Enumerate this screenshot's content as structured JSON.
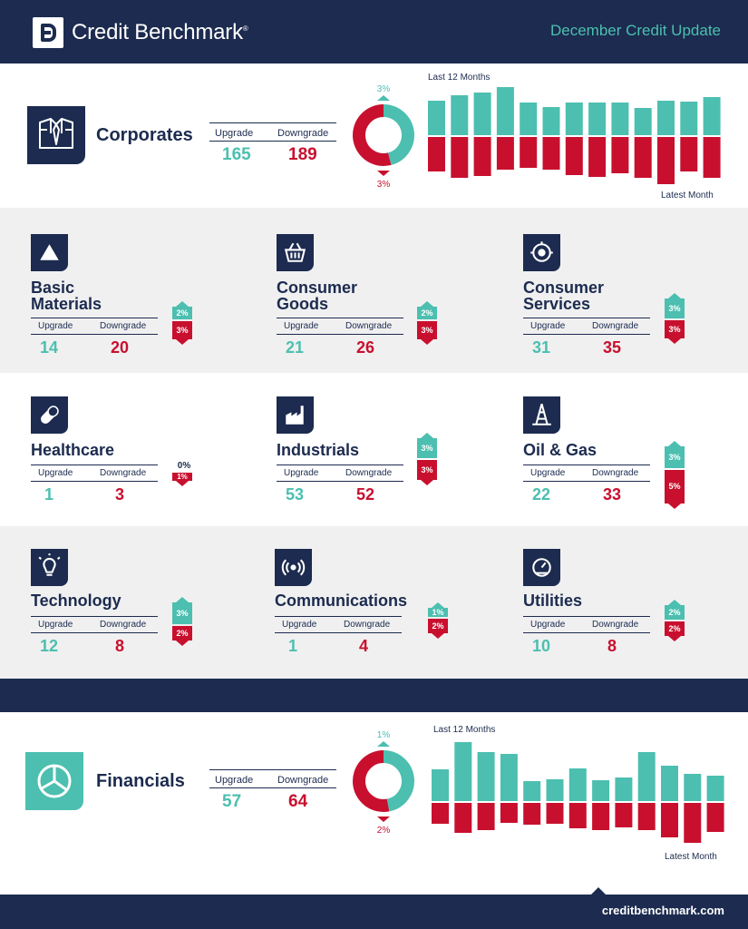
{
  "header": {
    "brand": "Credit Benchmark",
    "brand_mark": "®",
    "subtitle": "December Credit Update"
  },
  "colors": {
    "navy": "#1c2b4f",
    "teal": "#4cbfb0",
    "red": "#c8102e",
    "band": "#f0f0f0"
  },
  "labels": {
    "upgrade": "Upgrade",
    "downgrade": "Downgrade",
    "last12": "Last 12 Months",
    "latest": "Latest Month"
  },
  "corporates": {
    "title": "Corporates",
    "icon": "shirt-tie-icon",
    "upgrade": "165",
    "downgrade": "189",
    "pct_up": "3%",
    "pct_down": "3%"
  },
  "sectors": [
    {
      "title_line1": "Basic",
      "title_line2": "Materials",
      "icon": "triangle-icon",
      "upgrade": "14",
      "downgrade": "20",
      "pct_up": "2%",
      "pct_down": "3%"
    },
    {
      "title_line1": "Consumer",
      "title_line2": "Goods",
      "icon": "basket-icon",
      "upgrade": "21",
      "downgrade": "26",
      "pct_up": "2%",
      "pct_down": "3%"
    },
    {
      "title_line1": "Consumer",
      "title_line2": "Services",
      "icon": "service-icon",
      "upgrade": "31",
      "downgrade": "35",
      "pct_up": "3%",
      "pct_down": "3%"
    },
    {
      "title_line1": "Healthcare",
      "title_line2": "",
      "icon": "pill-icon",
      "upgrade": "1",
      "downgrade": "3",
      "pct_up": "0%",
      "pct_down": "1%"
    },
    {
      "title_line1": "Industrials",
      "title_line2": "",
      "icon": "factory-icon",
      "upgrade": "53",
      "downgrade": "52",
      "pct_up": "3%",
      "pct_down": "3%"
    },
    {
      "title_line1": "Oil & Gas",
      "title_line2": "",
      "icon": "oil-rig-icon",
      "upgrade": "22",
      "downgrade": "33",
      "pct_up": "3%",
      "pct_down": "5%"
    },
    {
      "title_line1": "Technology",
      "title_line2": "",
      "icon": "lightbulb-icon",
      "upgrade": "12",
      "downgrade": "8",
      "pct_up": "3%",
      "pct_down": "2%"
    },
    {
      "title_line1": "Communications",
      "title_line2": "",
      "icon": "signal-icon",
      "upgrade": "1",
      "downgrade": "4",
      "pct_up": "1%",
      "pct_down": "2%"
    },
    {
      "title_line1": "Utilities",
      "title_line2": "",
      "icon": "gauge-icon",
      "upgrade": "10",
      "downgrade": "8",
      "pct_up": "2%",
      "pct_down": "2%"
    }
  ],
  "financials": {
    "title": "Financials",
    "icon": "pie-icon",
    "upgrade": "57",
    "downgrade": "64",
    "pct_up": "1%",
    "pct_down": "2%"
  },
  "footer": {
    "url": "creditbenchmark.com"
  },
  "chart_data": [
    {
      "type": "donut",
      "name": "Corporates",
      "values": [
        {
          "label": "3%",
          "value": 46,
          "color": "#4cbfb0"
        },
        {
          "label": "3%",
          "value": 54,
          "color": "#c8102e"
        }
      ]
    },
    {
      "type": "bar",
      "name": "Corporates",
      "title": "Last 12 Months",
      "xlabel": "Latest Month",
      "series": [
        {
          "name": "Upgrade",
          "color": "#4cbfb0",
          "values": [
            38,
            44,
            47,
            53,
            36,
            31,
            36,
            36,
            36,
            30,
            38,
            37,
            42
          ]
        },
        {
          "name": "Downgrade",
          "color": "#c8102e",
          "values": [
            -38,
            -45,
            -43,
            -36,
            -34,
            -36,
            -42,
            -44,
            -40,
            -45,
            -52,
            -38,
            -45
          ]
        }
      ]
    },
    {
      "type": "donut",
      "name": "Financials",
      "values": [
        {
          "label": "1%",
          "value": 47,
          "color": "#4cbfb0"
        },
        {
          "label": "2%",
          "value": 53,
          "color": "#c8102e"
        }
      ]
    },
    {
      "type": "bar",
      "name": "Financials",
      "title": "Last 12 Months",
      "xlabel": "Latest Month",
      "series": [
        {
          "name": "Upgrade",
          "color": "#4cbfb0",
          "values": [
            35,
            65,
            54,
            52,
            22,
            24,
            36,
            23,
            26,
            54,
            39,
            30,
            28
          ]
        },
        {
          "name": "Downgrade",
          "color": "#c8102e",
          "values": [
            -23,
            -33,
            -30,
            -22,
            -24,
            -23,
            -28,
            -30,
            -27,
            -30,
            -38,
            -44,
            -32
          ]
        }
      ]
    }
  ]
}
